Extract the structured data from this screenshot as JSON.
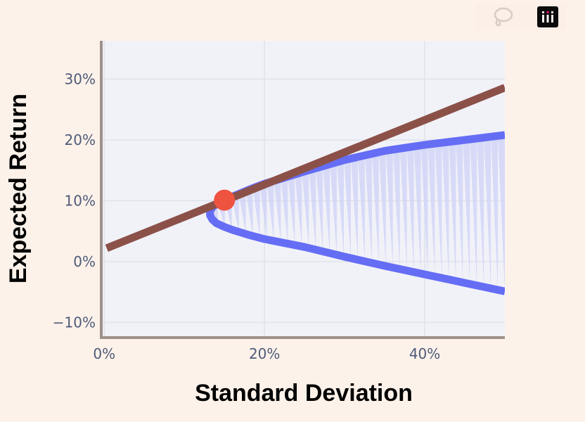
{
  "modebar": {
    "buttons": [
      {
        "name": "lasso-select",
        "icon": "lasso-icon"
      },
      {
        "name": "plotly-logo",
        "icon": "plotly-logo-icon"
      }
    ]
  },
  "chart_data": {
    "type": "line",
    "xlabel": "Standard Deviation",
    "ylabel": "Expected Return",
    "xlim": [
      -0.002,
      0.5
    ],
    "ylim": [
      -0.125,
      0.363
    ],
    "x_tick_values": [
      0,
      0.2,
      0.4
    ],
    "x_tick_labels": [
      "0%",
      "20%",
      "40%"
    ],
    "y_tick_values": [
      -0.1,
      0,
      0.1,
      0.2,
      0.3
    ],
    "y_tick_labels": [
      "−10%",
      "0%",
      "10%",
      "20%",
      "30%"
    ],
    "grid": true,
    "colors": {
      "plot_bg": "#f1f2f8",
      "grid": "#dfe2ec",
      "frontier": "#656df5",
      "fill": "#ced2f7",
      "cml": "#8b5148",
      "tangency": "#ee5340",
      "axis": "#9e918a"
    },
    "series": [
      {
        "kind": "frontier",
        "x": [
          0.5,
          0.45,
          0.4,
          0.35,
          0.3,
          0.25,
          0.2,
          0.18,
          0.16,
          0.15,
          0.14,
          0.135,
          0.132,
          0.132,
          0.135,
          0.14,
          0.15,
          0.16,
          0.18,
          0.2,
          0.25,
          0.3,
          0.35,
          0.4,
          0.45,
          0.5
        ],
        "y": [
          -0.049,
          -0.035,
          -0.021,
          -0.007,
          0.008,
          0.024,
          0.037,
          0.044,
          0.052,
          0.057,
          0.063,
          0.069,
          0.076,
          0.083,
          0.089,
          0.095,
          0.101,
          0.107,
          0.118,
          0.128,
          0.148,
          0.167,
          0.182,
          0.192,
          0.2,
          0.208
        ]
      },
      {
        "kind": "capital-market-line",
        "x": [
          0.003,
          0.5
        ],
        "y": [
          0.022,
          0.286
        ]
      }
    ],
    "points": [
      {
        "kind": "tangency-portfolio",
        "x": 0.15,
        "y": 0.101
      }
    ]
  }
}
